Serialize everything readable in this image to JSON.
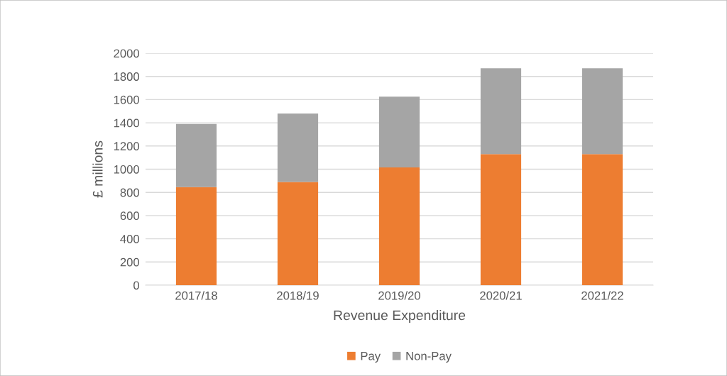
{
  "chart_data": {
    "type": "bar",
    "stacked": true,
    "xlabel": "Revenue Expenditure",
    "ylabel": "£ millions",
    "categories": [
      "2017/18",
      "2018/19",
      "2019/20",
      "2020/21",
      "2021/22"
    ],
    "series": [
      {
        "name": "Pay",
        "color": "#ed7d31",
        "values": [
          845,
          890,
          1015,
          1130,
          1130
        ]
      },
      {
        "name": "Non-Pay",
        "color": "#a5a5a5",
        "values": [
          545,
          590,
          610,
          740,
          740
        ]
      }
    ],
    "ylim": [
      0,
      2000
    ],
    "yticks": [
      0,
      200,
      400,
      600,
      800,
      1000,
      1200,
      1400,
      1600,
      1800,
      2000
    ],
    "grid": "y",
    "legend": "bottom"
  }
}
